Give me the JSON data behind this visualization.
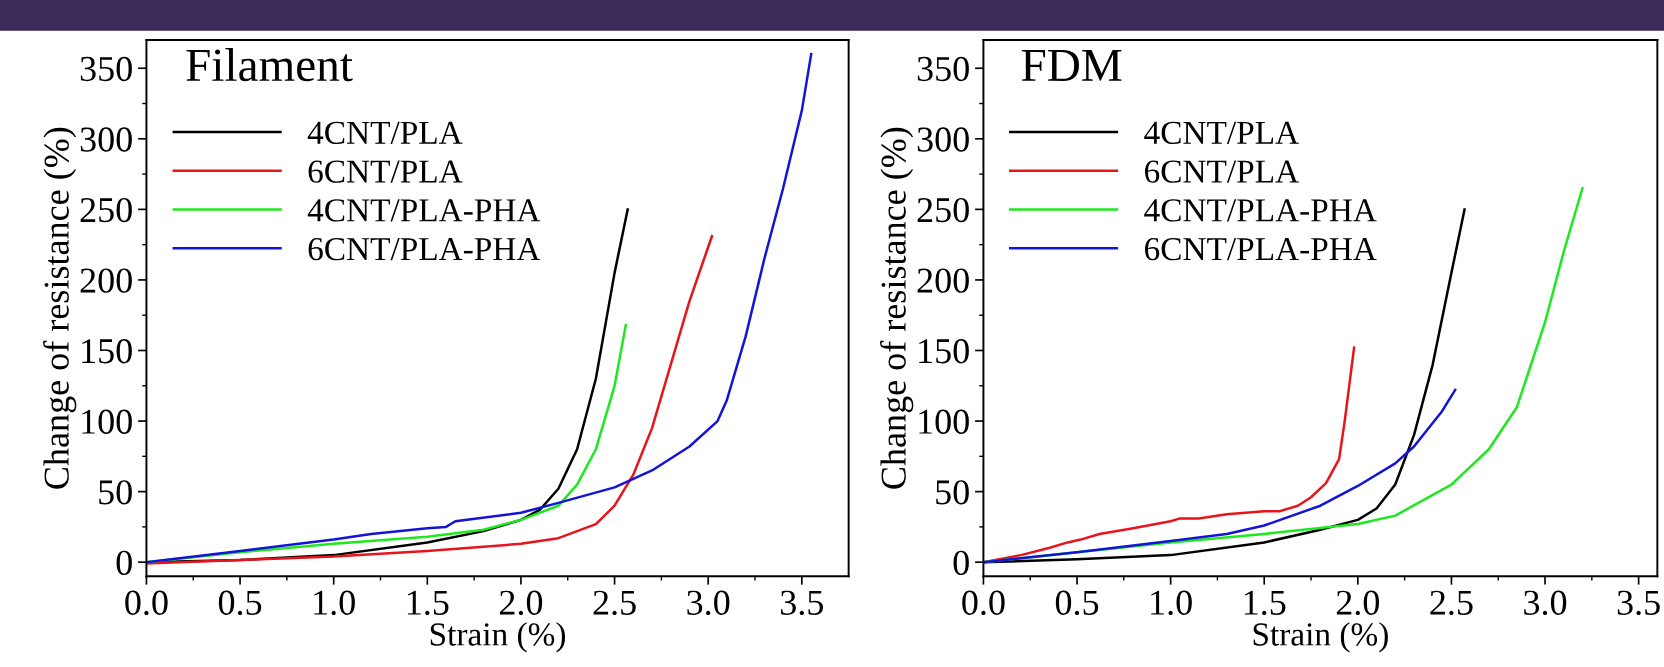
{
  "chart_data": [
    {
      "type": "line",
      "title": "Filament",
      "xlabel": "Strain (%)",
      "ylabel": "Change of resistance (%)",
      "legend": "top left",
      "grid": false,
      "xlim": [
        0,
        3.75
      ],
      "ylim": [
        -10,
        370
      ],
      "xticks": [
        {
          "value": 0,
          "label": "0.0"
        },
        {
          "value": 0.25,
          "label": null
        },
        {
          "value": 0.5,
          "label": "0.5"
        },
        {
          "value": 0.75,
          "label": null
        },
        {
          "value": 1,
          "label": "1.0"
        },
        {
          "value": 1.25,
          "label": null
        },
        {
          "value": 1.5,
          "label": "1.5"
        },
        {
          "value": 1.75,
          "label": null
        },
        {
          "value": 2,
          "label": "2.0"
        },
        {
          "value": 2.25,
          "label": null
        },
        {
          "value": 2.5,
          "label": "2.5"
        },
        {
          "value": 2.75,
          "label": null
        },
        {
          "value": 3,
          "label": "3.0"
        },
        {
          "value": 3.25,
          "label": null
        },
        {
          "value": 3.5,
          "label": "3.5"
        }
      ],
      "yticks": [
        0,
        {
          "value": 25,
          "label": null
        },
        50,
        {
          "value": 75,
          "label": null
        },
        100,
        {
          "value": 125,
          "label": null
        },
        150,
        {
          "value": 175,
          "label": null
        },
        200,
        {
          "value": 225,
          "label": null
        },
        250,
        {
          "value": 275,
          "label": null
        },
        300,
        {
          "value": 325,
          "label": null
        },
        350
      ],
      "series": [
        {
          "name": "4CNT/PLA",
          "color": "#000000",
          "x": [
            0,
            0.5,
            1,
            1.5,
            1.8,
            2.0,
            2.1,
            2.2,
            2.3,
            2.4,
            2.5,
            2.57
          ],
          "values": [
            0,
            1.5,
            5,
            14,
            22,
            30,
            37,
            52,
            80,
            130,
            205,
            250
          ]
        },
        {
          "name": "6CNT/PLA",
          "color": "#e8141c",
          "x": [
            0,
            0.5,
            1,
            1.5,
            2,
            2.2,
            2.4,
            2.5,
            2.6,
            2.7,
            2.8,
            2.9,
            3.02
          ],
          "values": [
            -1,
            1.5,
            4,
            8,
            13,
            17,
            27,
            40,
            62,
            95,
            140,
            185,
            231
          ]
        },
        {
          "name": "4CNT/PLA-PHA",
          "color": "#1ee81e",
          "x": [
            0,
            0.5,
            1,
            1.5,
            1.8,
            2.0,
            2.2,
            2.3,
            2.4,
            2.5,
            2.56
          ],
          "values": [
            0,
            7,
            13,
            18,
            23,
            30,
            40,
            55,
            80,
            125,
            168
          ]
        },
        {
          "name": "6CNT/PLA-PHA",
          "color": "#1414d8",
          "x": [
            0,
            0.5,
            1,
            1.2,
            1.5,
            1.6,
            1.65,
            2.0,
            2.2,
            2.5,
            2.7,
            2.9,
            3.05,
            3.1,
            3.2,
            3.3,
            3.4,
            3.5,
            3.55
          ],
          "values": [
            0,
            8,
            16,
            20,
            24,
            25,
            29,
            35,
            42,
            53,
            65,
            82,
            100,
            115,
            160,
            215,
            265,
            320,
            360
          ]
        }
      ]
    },
    {
      "type": "line",
      "title": "FDM",
      "xlabel": "Strain (%)",
      "ylabel": "Change of resistance (%)",
      "legend": "top left",
      "grid": false,
      "xlim": [
        0,
        3.6
      ],
      "ylim": [
        -10,
        370
      ],
      "xticks": [
        {
          "value": 0,
          "label": "0.0"
        },
        {
          "value": 0.25,
          "label": null
        },
        {
          "value": 0.5,
          "label": "0.5"
        },
        {
          "value": 0.75,
          "label": null
        },
        {
          "value": 1,
          "label": "1.0"
        },
        {
          "value": 1.25,
          "label": null
        },
        {
          "value": 1.5,
          "label": "1.5"
        },
        {
          "value": 1.75,
          "label": null
        },
        {
          "value": 2,
          "label": "2.0"
        },
        {
          "value": 2.25,
          "label": null
        },
        {
          "value": 2.5,
          "label": "2.5"
        },
        {
          "value": 2.75,
          "label": null
        },
        {
          "value": 3,
          "label": "3.0"
        },
        {
          "value": 3.25,
          "label": null
        },
        {
          "value": 3.5,
          "label": "3.5"
        }
      ],
      "yticks": [
        0,
        {
          "value": 25,
          "label": null
        },
        50,
        {
          "value": 75,
          "label": null
        },
        100,
        {
          "value": 125,
          "label": null
        },
        150,
        {
          "value": 175,
          "label": null
        },
        200,
        {
          "value": 225,
          "label": null
        },
        250,
        {
          "value": 275,
          "label": null
        },
        300,
        {
          "value": 325,
          "label": null
        },
        350
      ],
      "series": [
        {
          "name": "4CNT/PLA",
          "color": "#000000",
          "x": [
            0,
            0.5,
            1,
            1.5,
            1.8,
            2.0,
            2.1,
            2.2,
            2.3,
            2.4,
            2.5,
            2.57
          ],
          "values": [
            0,
            2,
            5,
            14,
            23,
            30,
            38,
            55,
            90,
            140,
            205,
            250
          ]
        },
        {
          "name": "6CNT/PLA",
          "color": "#e8141c",
          "x": [
            0,
            0.2,
            0.35,
            0.45,
            0.52,
            0.62,
            0.8,
            1.0,
            1.05,
            1.15,
            1.3,
            1.5,
            1.58,
            1.68,
            1.75,
            1.83,
            1.9,
            1.93,
            1.98
          ],
          "values": [
            0,
            5,
            10,
            14,
            16,
            20,
            24,
            29,
            31,
            31,
            34,
            36,
            36,
            40,
            46,
            56,
            73,
            100,
            152
          ]
        },
        {
          "name": "4CNT/PLA-PHA",
          "color": "#1ee81e",
          "x": [
            0,
            0.5,
            1,
            1.5,
            2.0,
            2.2,
            2.5,
            2.7,
            2.85,
            3.0,
            3.1,
            3.2
          ],
          "values": [
            0,
            7,
            14,
            20,
            27,
            33,
            55,
            80,
            110,
            170,
            220,
            265
          ]
        },
        {
          "name": "6CNT/PLA-PHA",
          "color": "#1414d8",
          "x": [
            0,
            0.5,
            1,
            1.3,
            1.5,
            1.8,
            2.0,
            2.2,
            2.3,
            2.45,
            2.52
          ],
          "values": [
            0,
            7,
            15,
            20,
            26,
            40,
            54,
            70,
            82,
            107,
            122
          ]
        }
      ]
    }
  ]
}
